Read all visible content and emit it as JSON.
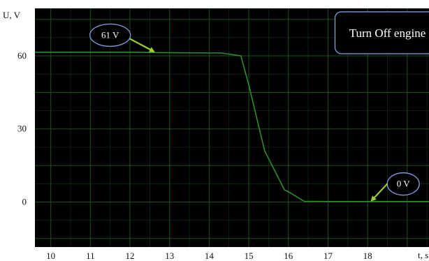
{
  "chart_data": {
    "type": "line",
    "xlabel": "t, s",
    "ylabel": "U, V",
    "xlim": [
      9.6,
      19.55
    ],
    "ylim": [
      -18.5,
      79.5
    ],
    "x_ticks": [
      10,
      11,
      12,
      13,
      14,
      15,
      16,
      17,
      18
    ],
    "y_ticks": [
      0,
      30,
      60
    ],
    "grid": true,
    "series": [
      {
        "x": [
          9.6,
          10,
          11,
          12,
          13,
          14,
          14.3,
          14.8,
          15.0,
          15.4,
          15.9,
          16.0,
          16.4,
          17,
          18,
          19,
          19.55
        ],
        "y": [
          61.5,
          61.5,
          61.5,
          61.5,
          61.3,
          61.2,
          61.2,
          60.0,
          48.0,
          21.0,
          5.0,
          4.2,
          0.3,
          0.2,
          0.2,
          0.2,
          0.2
        ],
        "color": "#2e8b2e"
      }
    ],
    "annotations": [
      {
        "text": "61 V",
        "x": 11.5,
        "y": 68.5,
        "arrow_from": [
          12.0,
          67.0
        ],
        "arrow_to": [
          12.6,
          61.8
        ]
      },
      {
        "text": "0 V",
        "x": 18.9,
        "y": 7.4,
        "arrow_from": [
          18.5,
          7.5
        ],
        "arrow_to": [
          18.1,
          0.6
        ]
      },
      {
        "text": "Turn Off engine",
        "x": 18.5,
        "y": 69.5
      }
    ],
    "colors": {
      "background": "#000000",
      "grid": "#1e5a1e",
      "line": "#2e8b2e",
      "arrow": "#9acd32",
      "ellipse_stroke": "#7f96d6",
      "box_stroke": "#7f96d6"
    }
  }
}
